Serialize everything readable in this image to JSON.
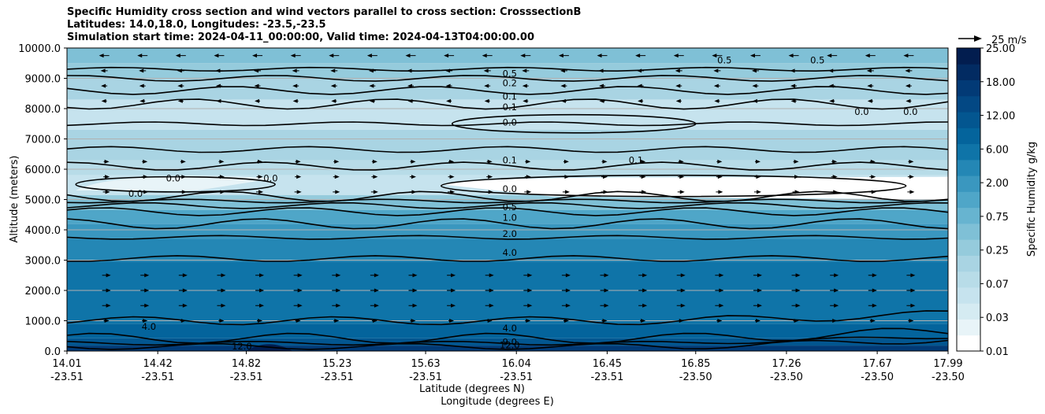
{
  "chart_data": {
    "type": "contour",
    "title_lines": [
      "Specific Humidity cross section and wind vectors parallel to cross section: CrosssectionB",
      "Latitudes: 14.0,18.0, Longitudes: -23.5,-23.5",
      "Simulation start time: 2024-04-11_00:00:00, Valid time: 2024-04-13T04:00:00.00"
    ],
    "ylabel": "Altitude (meters)",
    "xlabel_lat": "Latitude (degrees N)",
    "xlabel_lon": "Longitude (degrees E)",
    "ylim": [
      0,
      10000
    ],
    "yticks": [
      "0.0",
      "1000.0",
      "2000.0",
      "3000.0",
      "4000.0",
      "5000.0",
      "6000.0",
      "7000.0",
      "8000.0",
      "9000.0",
      "10000.0"
    ],
    "yticks_values": [
      0,
      1000,
      2000,
      3000,
      4000,
      5000,
      6000,
      7000,
      8000,
      9000,
      10000
    ],
    "xticks": [
      {
        "lat": "14.01",
        "lon": "-23.51",
        "v": 14.01
      },
      {
        "lat": "14.42",
        "lon": "-23.51",
        "v": 14.42
      },
      {
        "lat": "14.82",
        "lon": "-23.51",
        "v": 14.82
      },
      {
        "lat": "15.23",
        "lon": "-23.51",
        "v": 15.23
      },
      {
        "lat": "15.63",
        "lon": "-23.51",
        "v": 15.63
      },
      {
        "lat": "16.04",
        "lon": "-23.51",
        "v": 16.04
      },
      {
        "lat": "16.45",
        "lon": "-23.51",
        "v": 16.45
      },
      {
        "lat": "16.85",
        "lon": "-23.50",
        "v": 16.85
      },
      {
        "lat": "17.26",
        "lon": "-23.50",
        "v": 17.26
      },
      {
        "lat": "17.67",
        "lon": "-23.50",
        "v": 17.67
      },
      {
        "lat": "17.99",
        "lon": "-23.50",
        "v": 17.99
      }
    ],
    "xlim": [
      14.01,
      17.99
    ],
    "colorbar": {
      "label": "Specific Humidity g/kg",
      "ticks": [
        "0.01",
        "0.03",
        "0.07",
        "0.25",
        "0.75",
        "2.00",
        "6.00",
        "12.00",
        "18.00",
        "25.00"
      ],
      "levels": [
        0.01,
        0.02,
        0.03,
        0.05,
        0.07,
        0.1,
        0.25,
        0.5,
        0.75,
        1.0,
        2.0,
        4.0,
        6.0,
        9.0,
        12.0,
        15.0,
        18.0,
        21.0,
        25.0
      ],
      "colors": [
        "#ffffff",
        "#e8f4f8",
        "#d5ebf2",
        "#c6e3ee",
        "#b8dce8",
        "#a9d4e3",
        "#95cbdc",
        "#7fc0d6",
        "#67b4d0",
        "#4fa6c8",
        "#3a97bf",
        "#2487b5",
        "#0f74a8",
        "#04649c",
        "#035690",
        "#034884",
        "#023a76",
        "#022b62",
        "#021d4f"
      ]
    },
    "field_bands": [
      {
        "z": [
          0,
          180
        ],
        "q": 18.0
      },
      {
        "z": [
          180,
          420
        ],
        "q": 12.0
      },
      {
        "z": [
          420,
          900
        ],
        "q": 9.0
      },
      {
        "z": [
          900,
          2950
        ],
        "q": 6.0
      },
      {
        "z": [
          2950,
          3700
        ],
        "q": 4.0
      },
      {
        "z": [
          3700,
          4200
        ],
        "q": 2.0
      },
      {
        "z": [
          4200,
          4650
        ],
        "q": 1.0
      },
      {
        "z": [
          4650,
          5000
        ],
        "q": 0.5
      },
      {
        "z": [
          5000,
          5150
        ],
        "q": 0.25
      },
      {
        "z": [
          5150,
          5800
        ],
        "q": 0.05
      },
      {
        "z": [
          5800,
          6300
        ],
        "q": 0.07
      },
      {
        "z": [
          6300,
          7300
        ],
        "q": 0.1
      },
      {
        "z": [
          7300,
          8300
        ],
        "q": 0.05
      },
      {
        "z": [
          8300,
          9000
        ],
        "q": 0.1
      },
      {
        "z": [
          9000,
          9500
        ],
        "q": 0.25
      },
      {
        "z": [
          9500,
          10000
        ],
        "q": 0.5
      }
    ],
    "dry_layer": {
      "lat_start": 15.7,
      "lat_end": 17.99,
      "z_bottom": 5000,
      "z_top": 5800,
      "q": 0.01
    },
    "contour_labels": [
      {
        "text": "0.5",
        "lat": 16.01,
        "z": 9150
      },
      {
        "text": "0.2",
        "lat": 16.01,
        "z": 8850
      },
      {
        "text": "0.1",
        "lat": 16.01,
        "z": 8400
      },
      {
        "text": "0.1",
        "lat": 16.01,
        "z": 8050
      },
      {
        "text": "0.0",
        "lat": 16.01,
        "z": 7550
      },
      {
        "text": "0.1",
        "lat": 16.01,
        "z": 6300
      },
      {
        "text": "0.0",
        "lat": 16.01,
        "z": 5350
      },
      {
        "text": "0.5",
        "lat": 16.01,
        "z": 4750
      },
      {
        "text": "1.0",
        "lat": 16.01,
        "z": 4400
      },
      {
        "text": "2.0",
        "lat": 16.01,
        "z": 3870
      },
      {
        "text": "4.0",
        "lat": 16.01,
        "z": 3250
      },
      {
        "text": "4.0",
        "lat": 16.01,
        "z": 750
      },
      {
        "text": "9.0",
        "lat": 16.01,
        "z": 300
      },
      {
        "text": "12.0",
        "lat": 16.01,
        "z": 200
      },
      {
        "text": "4.0",
        "lat": 14.38,
        "z": 800
      },
      {
        "text": "12.0",
        "lat": 14.8,
        "z": 150
      },
      {
        "text": "0.5",
        "lat": 16.98,
        "z": 9600
      },
      {
        "text": "0.5",
        "lat": 17.4,
        "z": 9600
      },
      {
        "text": "0.0",
        "lat": 17.6,
        "z": 7900
      },
      {
        "text": "0.0",
        "lat": 17.82,
        "z": 7900
      },
      {
        "text": "0.1",
        "lat": 16.58,
        "z": 6300
      },
      {
        "text": "0.0",
        "lat": 14.49,
        "z": 5700
      },
      {
        "text": "0.0",
        "lat": 14.93,
        "z": 5700
      },
      {
        "text": "0.0",
        "lat": 14.32,
        "z": 5200
      }
    ],
    "wind_rows": [
      {
        "z": 9750,
        "dir": -1,
        "len": 10
      },
      {
        "z": 9250,
        "dir": -1,
        "len": 6
      },
      {
        "z": 8750,
        "dir": -1,
        "len": 5
      },
      {
        "z": 8250,
        "dir": -1,
        "len": 4
      },
      {
        "z": 6250,
        "dir": 1,
        "len": 4
      },
      {
        "z": 5750,
        "dir": 1,
        "len": 5
      },
      {
        "z": 5250,
        "dir": 1,
        "len": 6
      },
      {
        "z": 2500,
        "dir": 1,
        "len": 8
      },
      {
        "z": 2000,
        "dir": 1,
        "len": 8
      },
      {
        "z": 1500,
        "dir": 1,
        "len": 8
      },
      {
        "z": 1000,
        "dir": 1,
        "len": 4
      }
    ],
    "wind_key": {
      "label": "25 m/s"
    }
  }
}
